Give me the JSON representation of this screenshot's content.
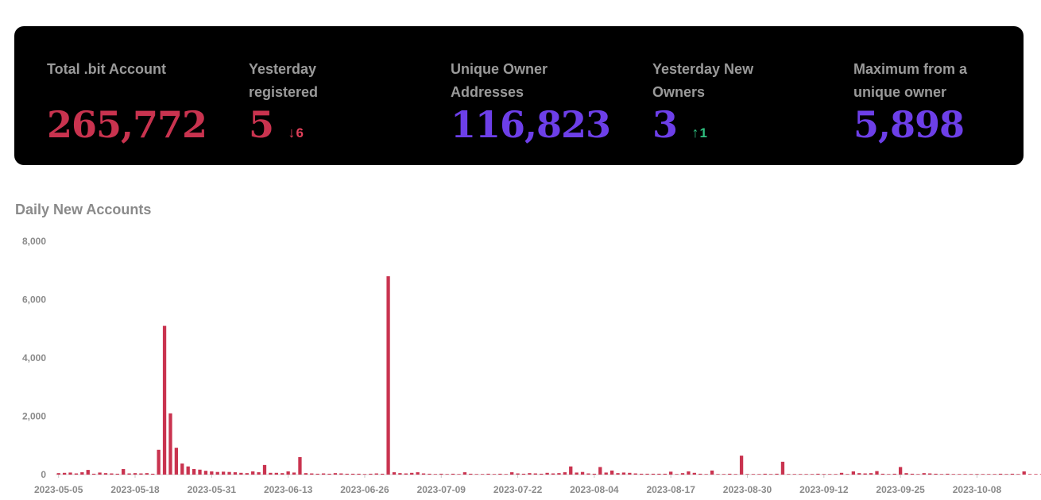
{
  "stats": [
    {
      "label": "Total .bit Account",
      "value": "265,772",
      "color": "#c9334f"
    },
    {
      "label": "Yesterday registered",
      "value": "5",
      "color": "#c9334f",
      "delta": "6",
      "delta_dir": "down",
      "delta_color": "#e0405a"
    },
    {
      "label": "Unique Owner Addresses",
      "value": "116,823",
      "color": "#6d3fe8"
    },
    {
      "label": "Yesterday New Owners",
      "value": "3",
      "color": "#6d3fe8",
      "delta": "1",
      "delta_dir": "up",
      "delta_color": "#2fbf7f"
    },
    {
      "label": "Maximum from a unique owner",
      "value": "5,898",
      "color": "#6d3fe8"
    }
  ],
  "chart_title": "Daily New Accounts",
  "chart_data": {
    "type": "bar",
    "title": "Daily New Accounts",
    "xlabel": "",
    "ylabel": "",
    "bar_color": "#c9334f",
    "grid": false,
    "ylim": [
      0,
      8000
    ],
    "yticks": [
      "0",
      "2,000",
      "4,000",
      "6,000",
      "8,000"
    ],
    "x_start": "2023-05-05",
    "x_end": "2023-10-15",
    "xtick_labels": [
      "2023-05-05",
      "2023-05-18",
      "2023-05-31",
      "2023-06-13",
      "2023-06-26",
      "2023-07-09",
      "2023-07-22",
      "2023-08-04",
      "2023-08-17",
      "2023-08-30",
      "2023-09-12",
      "2023-09-25",
      "2023-10-08"
    ],
    "values": [
      50,
      60,
      70,
      40,
      80,
      160,
      30,
      70,
      50,
      40,
      30,
      190,
      40,
      50,
      40,
      50,
      30,
      850,
      5100,
      2100,
      920,
      380,
      280,
      190,
      170,
      130,
      110,
      90,
      100,
      90,
      80,
      60,
      50,
      110,
      80,
      330,
      60,
      60,
      50,
      110,
      70,
      600,
      50,
      40,
      30,
      40,
      30,
      50,
      40,
      30,
      30,
      30,
      20,
      30,
      40,
      30,
      6800,
      80,
      50,
      40,
      60,
      80,
      40,
      30,
      20,
      30,
      20,
      30,
      20,
      80,
      30,
      20,
      20,
      30,
      20,
      30,
      20,
      80,
      40,
      30,
      50,
      40,
      30,
      60,
      40,
      50,
      80,
      280,
      70,
      90,
      40,
      30,
      260,
      70,
      140,
      50,
      70,
      60,
      40,
      30,
      30,
      30,
      30,
      30,
      100,
      20,
      50,
      110,
      60,
      30,
      20,
      140,
      20,
      20,
      30,
      20,
      650,
      20,
      20,
      20,
      30,
      20,
      30,
      440,
      20,
      20,
      20,
      20,
      20,
      30,
      20,
      20,
      20,
      60,
      20,
      110,
      50,
      40,
      50,
      120,
      30,
      20,
      30,
      260,
      50,
      30,
      20,
      50,
      40,
      30,
      20,
      30,
      20,
      20,
      20,
      20,
      20,
      20,
      20,
      20,
      30,
      20,
      30,
      20,
      110,
      20,
      20,
      20,
      20
    ]
  }
}
